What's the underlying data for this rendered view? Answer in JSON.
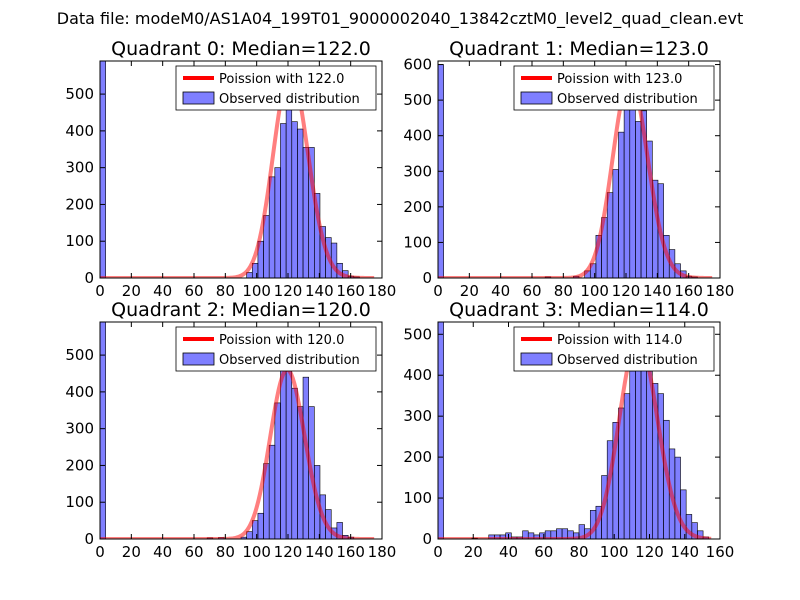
{
  "figure": {
    "suptitle": "Data file: modeM0/AS1A04_199T01_9000002040_13842cztM0_level2_quad_clean.evt"
  },
  "chart_data": [
    {
      "type": "bar",
      "title": "Quadrant 0: Median=122.0",
      "legend": {
        "line_label": "Poission with 122.0",
        "bar_label": "Observed distribution",
        "position": "upper-right"
      },
      "xlim": [
        0,
        180
      ],
      "ylim": [
        0,
        590
      ],
      "xticks": [
        0,
        20,
        40,
        60,
        80,
        100,
        120,
        140,
        160,
        180
      ],
      "yticks": [
        0,
        100,
        200,
        300,
        400,
        500
      ],
      "bin_width": 3.6,
      "bins": [
        [
          0,
          590
        ],
        [
          93.6,
          15
        ],
        [
          97.2,
          40
        ],
        [
          100.8,
          100
        ],
        [
          104.4,
          170
        ],
        [
          108,
          275
        ],
        [
          111.6,
          300
        ],
        [
          115.2,
          420
        ],
        [
          118.8,
          560
        ],
        [
          122.4,
          425
        ],
        [
          126,
          405
        ],
        [
          129.6,
          355
        ],
        [
          133.2,
          355
        ],
        [
          136.8,
          230
        ],
        [
          140.4,
          140
        ],
        [
          144,
          110
        ],
        [
          147.6,
          95
        ],
        [
          151.2,
          40
        ],
        [
          154.8,
          20
        ],
        [
          158.4,
          5
        ],
        [
          162,
          3
        ]
      ],
      "poisson_mean": 122.0,
      "poisson_xmax": 175
    },
    {
      "type": "bar",
      "title": "Quadrant 1: Median=123.0",
      "legend": {
        "line_label": "Poission with 123.0",
        "bar_label": "Observed distribution",
        "position": "upper-right"
      },
      "xlim": [
        0,
        180
      ],
      "ylim": [
        0,
        610
      ],
      "xticks": [
        0,
        20,
        40,
        60,
        80,
        100,
        120,
        140,
        160,
        180
      ],
      "yticks": [
        0,
        100,
        200,
        300,
        400,
        500,
        600
      ],
      "bin_width": 3.6,
      "bins": [
        [
          0,
          600
        ],
        [
          68.4,
          3
        ],
        [
          86.4,
          5
        ],
        [
          93.6,
          20
        ],
        [
          97.2,
          40
        ],
        [
          100.8,
          120
        ],
        [
          104.4,
          170
        ],
        [
          108,
          240
        ],
        [
          111.6,
          305
        ],
        [
          115.2,
          410
        ],
        [
          118.8,
          560
        ],
        [
          122.4,
          540
        ],
        [
          126,
          440
        ],
        [
          129.6,
          470
        ],
        [
          133.2,
          385
        ],
        [
          136.8,
          275
        ],
        [
          140.4,
          265
        ],
        [
          144,
          120
        ],
        [
          147.6,
          80
        ],
        [
          151.2,
          40
        ],
        [
          154.8,
          20
        ],
        [
          158.4,
          5
        ],
        [
          162,
          3
        ]
      ],
      "poisson_mean": 123.0,
      "poisson_xmax": 175
    },
    {
      "type": "bar",
      "title": "Quadrant 2: Median=120.0",
      "legend": {
        "line_label": "Poission with 120.0",
        "bar_label": "Observed distribution",
        "position": "upper-right"
      },
      "xlim": [
        0,
        180
      ],
      "ylim": [
        0,
        590
      ],
      "xticks": [
        0,
        20,
        40,
        60,
        80,
        100,
        120,
        140,
        160,
        180
      ],
      "yticks": [
        0,
        100,
        200,
        300,
        400,
        500
      ],
      "bin_width": 3.6,
      "bins": [
        [
          0,
          590
        ],
        [
          68.4,
          3
        ],
        [
          75.6,
          4
        ],
        [
          90,
          5
        ],
        [
          93.6,
          20
        ],
        [
          97.2,
          50
        ],
        [
          100.8,
          70
        ],
        [
          104.4,
          205
        ],
        [
          108,
          255
        ],
        [
          111.6,
          370
        ],
        [
          115.2,
          460
        ],
        [
          118.8,
          460
        ],
        [
          122.4,
          410
        ],
        [
          126,
          360
        ],
        [
          129.6,
          440
        ],
        [
          133.2,
          360
        ],
        [
          136.8,
          200
        ],
        [
          140.4,
          120
        ],
        [
          144,
          80
        ],
        [
          147.6,
          30
        ],
        [
          151.2,
          45
        ],
        [
          154.8,
          10
        ],
        [
          158.4,
          5
        ]
      ],
      "poisson_mean": 120.0,
      "poisson_xmax": 175
    },
    {
      "type": "bar",
      "title": "Quadrant 3: Median=114.0",
      "legend": {
        "line_label": "Poission with 114.0",
        "bar_label": "Observed distribution",
        "position": "upper-right"
      },
      "xlim": [
        0,
        160
      ],
      "ylim": [
        0,
        530
      ],
      "xticks": [
        0,
        20,
        40,
        60,
        80,
        100,
        120,
        140,
        160
      ],
      "yticks": [
        0,
        100,
        200,
        300,
        400,
        500
      ],
      "bin_width": 3.2,
      "bins": [
        [
          0,
          530
        ],
        [
          19.2,
          2
        ],
        [
          28.8,
          10
        ],
        [
          32,
          10
        ],
        [
          35.2,
          10
        ],
        [
          38.4,
          15
        ],
        [
          41.6,
          5
        ],
        [
          44.8,
          5
        ],
        [
          48,
          20
        ],
        [
          51.2,
          15
        ],
        [
          54.4,
          10
        ],
        [
          57.6,
          15
        ],
        [
          60.8,
          20
        ],
        [
          64,
          20
        ],
        [
          67.2,
          25
        ],
        [
          70.4,
          25
        ],
        [
          73.6,
          20
        ],
        [
          76.8,
          15
        ],
        [
          80,
          35
        ],
        [
          83.2,
          25
        ],
        [
          86.4,
          70
        ],
        [
          89.6,
          80
        ],
        [
          92.8,
          155
        ],
        [
          96,
          240
        ],
        [
          99.2,
          285
        ],
        [
          102.4,
          320
        ],
        [
          105.6,
          355
        ],
        [
          108.8,
          410
        ],
        [
          112,
          420
        ],
        [
          115.2,
          490
        ],
        [
          118.4,
          410
        ],
        [
          121.6,
          380
        ],
        [
          124.8,
          355
        ],
        [
          128,
          290
        ],
        [
          131.2,
          220
        ],
        [
          134.4,
          200
        ],
        [
          137.6,
          120
        ],
        [
          140.8,
          60
        ],
        [
          144,
          40
        ],
        [
          147.2,
          20
        ],
        [
          150.4,
          5
        ]
      ],
      "poisson_mean": 114.0,
      "poisson_xmax": 155
    }
  ]
}
